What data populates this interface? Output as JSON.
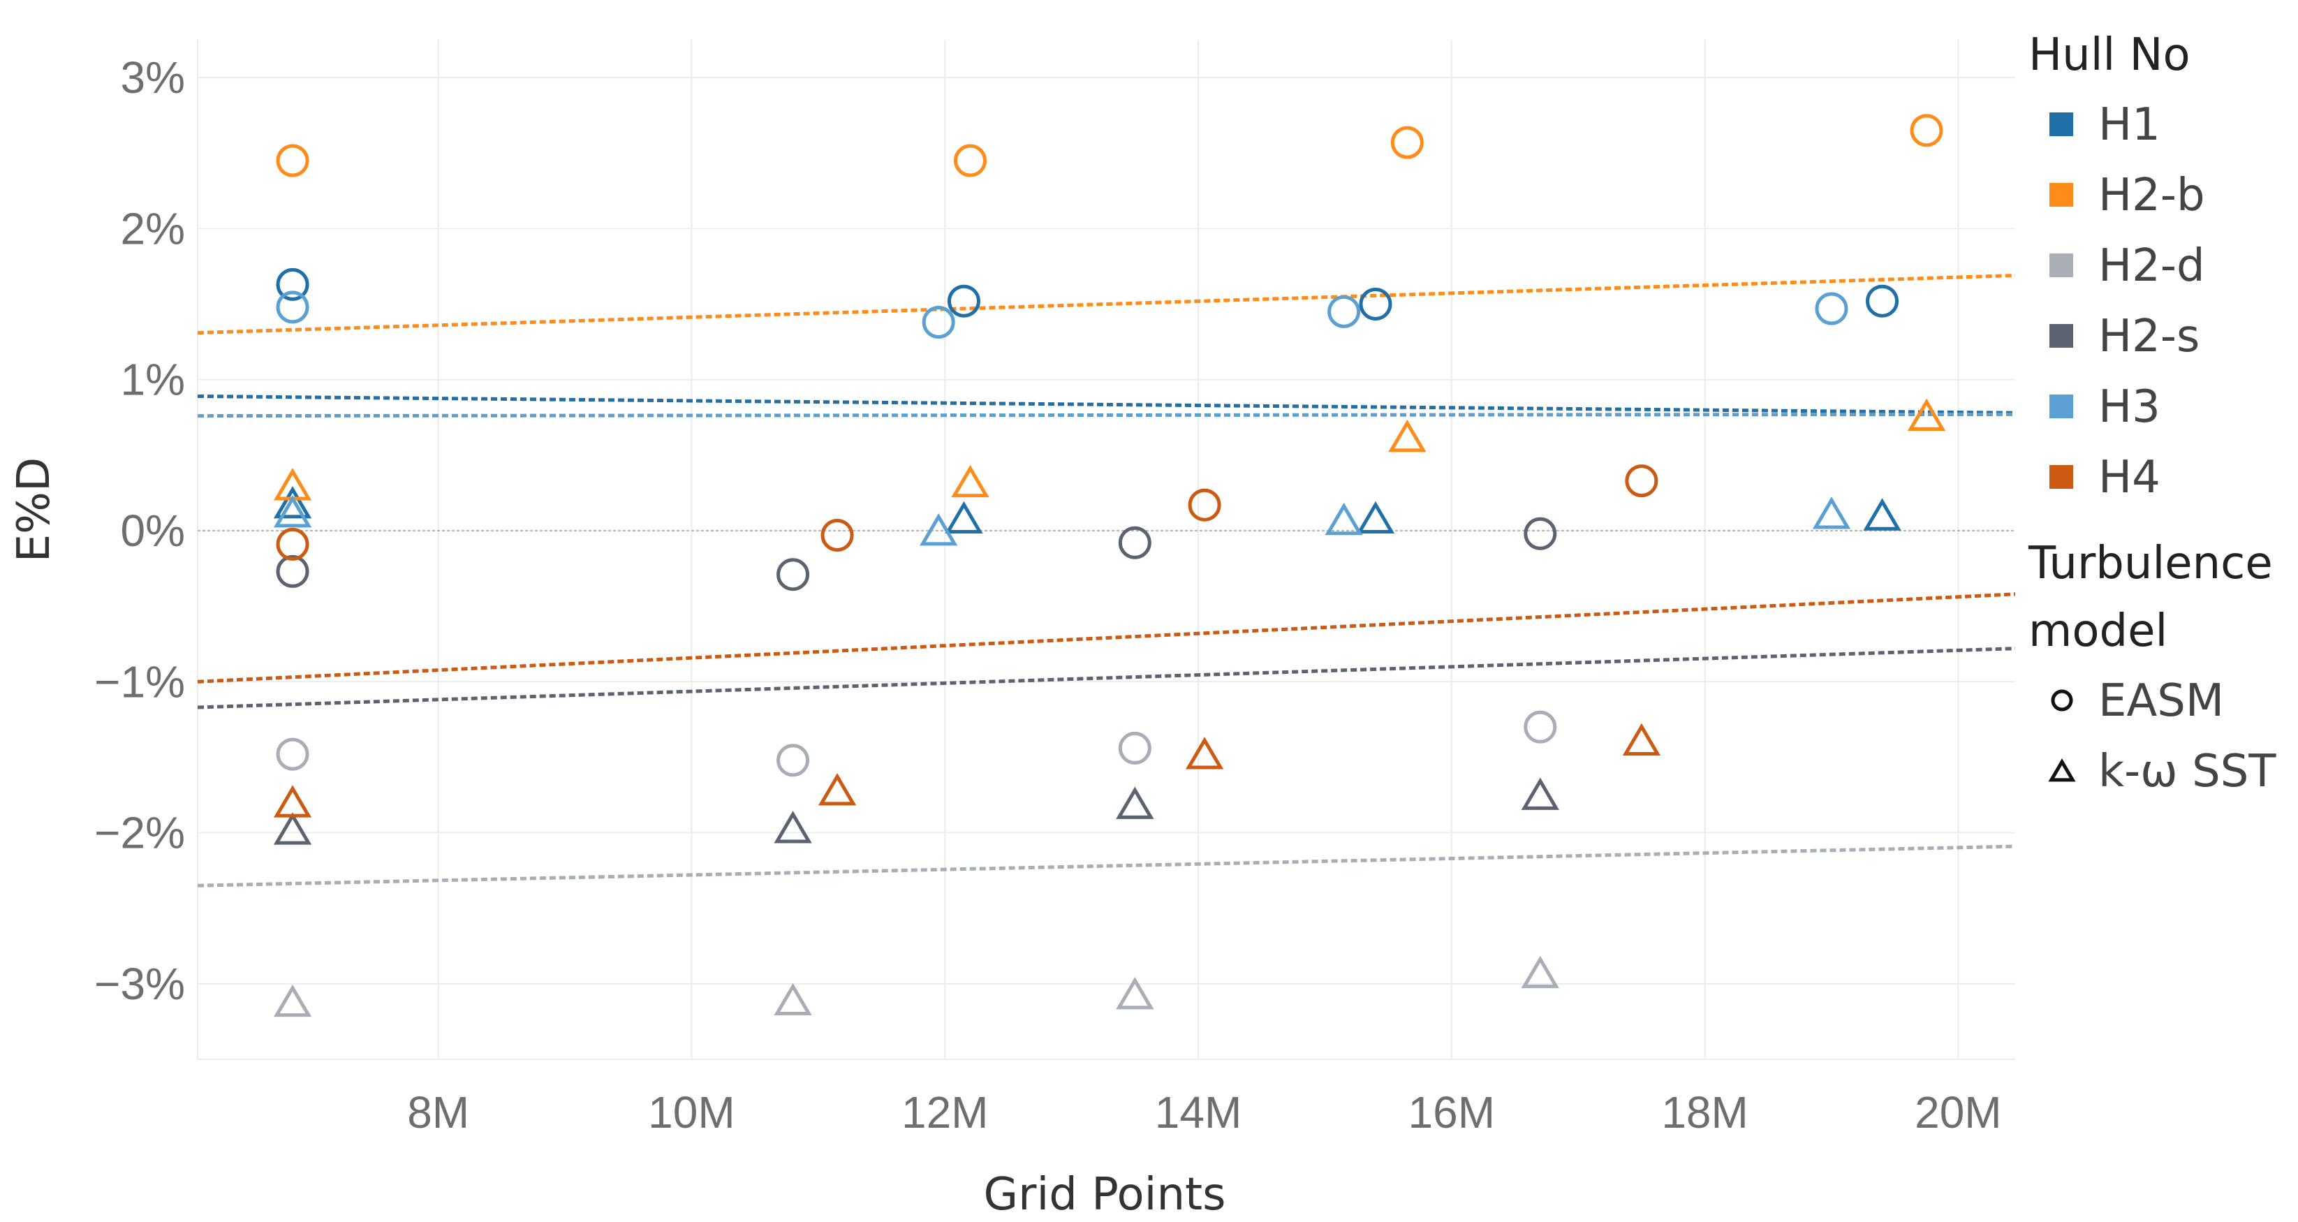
{
  "chart_data": {
    "type": "scatter",
    "xlabel": "Grid Points",
    "ylabel": "E%D",
    "xlim": [
      6.1,
      20.45
    ],
    "ylim": [
      -3.5,
      3.25
    ],
    "xticks": [
      8,
      10,
      12,
      14,
      16,
      18,
      20
    ],
    "xtick_labels": [
      "8M",
      "10M",
      "12M",
      "14M",
      "16M",
      "18M",
      "20M"
    ],
    "yticks": [
      3,
      2,
      1,
      0,
      -1,
      -2,
      -3
    ],
    "ytick_labels": [
      "3%",
      "2%",
      "1%",
      "0%",
      "−1%",
      "−2%",
      "−3%"
    ],
    "grid": true,
    "zero_line": true,
    "legend": {
      "placement": "right",
      "color_title": "Hull No",
      "shape_title": "Turbulence model",
      "shape_title_lines": [
        "Turbulence",
        "model"
      ],
      "shapes": [
        {
          "name": "EASM",
          "marker": "circle"
        },
        {
          "name": "k-ω SST",
          "marker": "triangle"
        }
      ]
    },
    "series": [
      {
        "name": "H1",
        "color": "#1f6fa8",
        "EASM": [
          [
            6.85,
            1.63
          ],
          [
            12.15,
            1.52
          ],
          [
            15.4,
            1.5
          ],
          [
            19.4,
            1.52
          ]
        ],
        "kwSST": [
          [
            6.85,
            0.18
          ],
          [
            12.15,
            0.08
          ],
          [
            15.4,
            0.08
          ],
          [
            19.4,
            0.1
          ]
        ],
        "trend": [
          [
            6.1,
            0.89
          ],
          [
            20.45,
            0.78
          ]
        ]
      },
      {
        "name": "H2-b",
        "color": "#ff8c1a",
        "EASM": [
          [
            6.85,
            2.45
          ],
          [
            12.2,
            2.45
          ],
          [
            15.65,
            2.57
          ],
          [
            19.75,
            2.65
          ]
        ],
        "kwSST": [
          [
            6.85,
            0.3
          ],
          [
            12.2,
            0.32
          ],
          [
            15.65,
            0.62
          ],
          [
            19.75,
            0.76
          ]
        ],
        "trend": [
          [
            6.1,
            1.31
          ],
          [
            20.45,
            1.69
          ]
        ]
      },
      {
        "name": "H2-d",
        "color": "#a8adb6",
        "EASM": [
          [
            6.85,
            -1.48
          ],
          [
            10.8,
            -1.52
          ],
          [
            13.5,
            -1.44
          ],
          [
            16.7,
            -1.3
          ]
        ],
        "kwSST": [
          [
            6.85,
            -3.12
          ],
          [
            10.8,
            -3.11
          ],
          [
            13.5,
            -3.07
          ],
          [
            16.7,
            -2.93
          ]
        ],
        "trend": [
          [
            6.1,
            -2.35
          ],
          [
            20.45,
            -2.09
          ]
        ]
      },
      {
        "name": "H2-s",
        "color": "#5b6270",
        "EASM": [
          [
            6.85,
            -0.27
          ],
          [
            10.8,
            -0.29
          ],
          [
            13.5,
            -0.08
          ],
          [
            16.7,
            -0.02
          ]
        ],
        "kwSST": [
          [
            6.85,
            -1.98
          ],
          [
            10.8,
            -1.97
          ],
          [
            13.5,
            -1.81
          ],
          [
            16.7,
            -1.75
          ]
        ],
        "trend": [
          [
            6.1,
            -1.17
          ],
          [
            20.45,
            -0.78
          ]
        ]
      },
      {
        "name": "H3",
        "color": "#5aa0d2",
        "EASM": [
          [
            6.85,
            1.48
          ],
          [
            11.95,
            1.38
          ],
          [
            15.15,
            1.45
          ],
          [
            19.0,
            1.47
          ]
        ],
        "kwSST": [
          [
            6.85,
            0.12
          ],
          [
            11.95,
            0.0
          ],
          [
            15.15,
            0.07
          ],
          [
            19.0,
            0.11
          ]
        ],
        "trend": [
          [
            6.1,
            0.76
          ],
          [
            20.45,
            0.77
          ]
        ]
      },
      {
        "name": "H4",
        "color": "#cc5a12",
        "EASM": [
          [
            6.85,
            -0.09
          ],
          [
            11.15,
            -0.03
          ],
          [
            14.05,
            0.17
          ],
          [
            17.5,
            0.33
          ]
        ],
        "kwSST": [
          [
            6.85,
            -1.8
          ],
          [
            11.15,
            -1.72
          ],
          [
            14.05,
            -1.48
          ],
          [
            17.5,
            -1.39
          ]
        ],
        "trend": [
          [
            6.1,
            -1.0
          ],
          [
            20.45,
            -0.42
          ]
        ]
      }
    ]
  }
}
